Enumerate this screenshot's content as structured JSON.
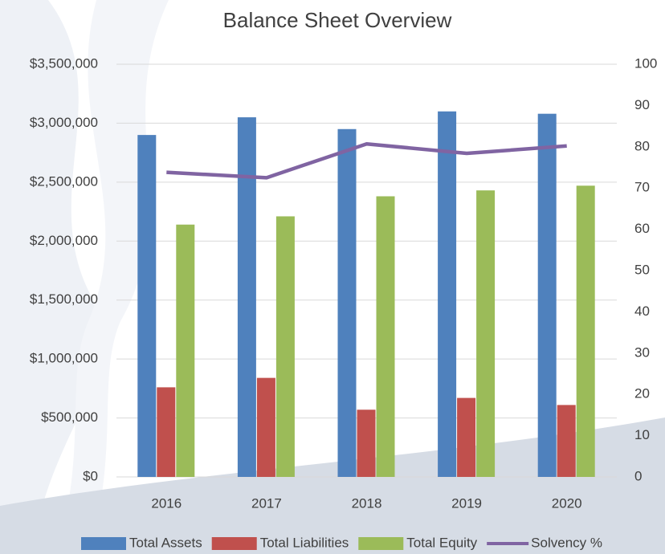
{
  "chart_data": {
    "type": "bar",
    "title": "Balance Sheet Overview",
    "categories": [
      "2016",
      "2017",
      "2018",
      "2019",
      "2020"
    ],
    "series": [
      {
        "name": "Total Assets",
        "color": "#4f81bd",
        "values": [
          2900000,
          3050000,
          2950000,
          3100000,
          3080000
        ]
      },
      {
        "name": "Total Liabilities",
        "color": "#c0504d",
        "values": [
          760000,
          840000,
          570000,
          670000,
          610000
        ]
      },
      {
        "name": "Total Equity",
        "color": "#9bbb59",
        "values": [
          2140000,
          2210000,
          2380000,
          2430000,
          2470000
        ]
      },
      {
        "name": "Solvency %",
        "type": "line",
        "axis": "y2",
        "color": "#8064a2",
        "values": [
          73.8,
          72.5,
          80.7,
          78.4,
          80.2
        ]
      }
    ],
    "ylim": [
      0,
      3500000
    ],
    "yticks": [
      {
        "value": 0,
        "label": "$0"
      },
      {
        "value": 500000,
        "label": "$500,000"
      },
      {
        "value": 1000000,
        "label": "$1,000,000"
      },
      {
        "value": 1500000,
        "label": "$1,500,000"
      },
      {
        "value": 2000000,
        "label": "$2,000,000"
      },
      {
        "value": 2500000,
        "label": "$2,500,000"
      },
      {
        "value": 3000000,
        "label": "$3,000,000"
      },
      {
        "value": 3500000,
        "label": "$3,500,000"
      }
    ],
    "y2lim": [
      0,
      100
    ],
    "y2ticks": [
      0,
      10,
      20,
      30,
      40,
      50,
      60,
      70,
      80,
      90,
      100
    ],
    "grid": true,
    "legend": "bottom"
  }
}
